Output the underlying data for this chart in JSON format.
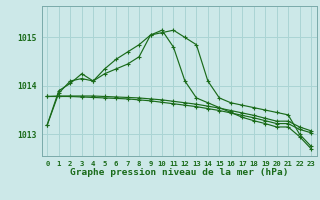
{
  "background_color": "#cce8e8",
  "grid_color": "#aad4d4",
  "line_color": "#1a6b1a",
  "title": "Graphe pression niveau de la mer (hPa)",
  "ylim": [
    1012.55,
    1015.65
  ],
  "yticks": [
    1013,
    1014,
    1015
  ],
  "xlim": [
    -0.5,
    23.5
  ],
  "xticks": [
    0,
    1,
    2,
    3,
    4,
    5,
    6,
    7,
    8,
    9,
    10,
    11,
    12,
    13,
    14,
    15,
    16,
    17,
    18,
    19,
    20,
    21,
    22,
    23
  ],
  "series": [
    {
      "x": [
        0,
        1,
        2,
        3,
        4,
        5,
        6,
        7,
        8,
        9,
        10,
        11,
        12,
        13,
        14,
        15,
        16,
        17,
        18,
        19,
        20,
        21,
        22,
        23
      ],
      "y": [
        1013.2,
        1013.9,
        1014.05,
        1014.25,
        1014.1,
        1014.35,
        1014.55,
        1014.7,
        1014.85,
        1015.05,
        1015.1,
        1015.15,
        1015.0,
        1014.85,
        1014.1,
        1013.75,
        1013.65,
        1013.6,
        1013.55,
        1013.5,
        1013.45,
        1013.4,
        1013.0,
        1012.75
      ]
    },
    {
      "x": [
        0,
        1,
        2,
        3,
        4,
        5,
        6,
        7,
        8,
        9,
        10,
        11,
        12,
        13,
        14,
        15,
        16,
        17,
        18,
        19,
        20,
        21,
        22,
        23
      ],
      "y": [
        1013.78,
        1013.78,
        1013.78,
        1013.77,
        1013.76,
        1013.75,
        1013.74,
        1013.73,
        1013.71,
        1013.69,
        1013.66,
        1013.63,
        1013.6,
        1013.57,
        1013.53,
        1013.49,
        1013.44,
        1013.39,
        1013.34,
        1013.28,
        1013.22,
        1013.22,
        1013.1,
        1013.03
      ]
    },
    {
      "x": [
        0,
        1,
        2,
        3,
        4,
        5,
        6,
        7,
        8,
        9,
        10,
        11,
        12,
        13,
        14,
        15,
        16,
        17,
        18,
        19,
        20,
        21,
        22,
        23
      ],
      "y": [
        1013.78,
        1013.79,
        1013.79,
        1013.79,
        1013.79,
        1013.78,
        1013.77,
        1013.76,
        1013.75,
        1013.73,
        1013.71,
        1013.68,
        1013.65,
        1013.62,
        1013.58,
        1013.54,
        1013.49,
        1013.44,
        1013.39,
        1013.33,
        1013.27,
        1013.27,
        1013.15,
        1013.07
      ]
    },
    {
      "x": [
        0,
        1,
        2,
        3,
        4,
        5,
        6,
        7,
        8,
        9,
        10,
        11,
        12,
        13,
        14,
        15,
        16,
        17,
        18,
        19,
        20,
        21,
        22,
        23
      ],
      "y": [
        1013.2,
        1013.85,
        1014.1,
        1014.15,
        1014.1,
        1014.25,
        1014.35,
        1014.45,
        1014.6,
        1015.05,
        1015.15,
        1014.8,
        1014.1,
        1013.75,
        1013.65,
        1013.55,
        1013.45,
        1013.35,
        1013.28,
        1013.22,
        1013.15,
        1013.15,
        1012.95,
        1012.7
      ]
    }
  ]
}
